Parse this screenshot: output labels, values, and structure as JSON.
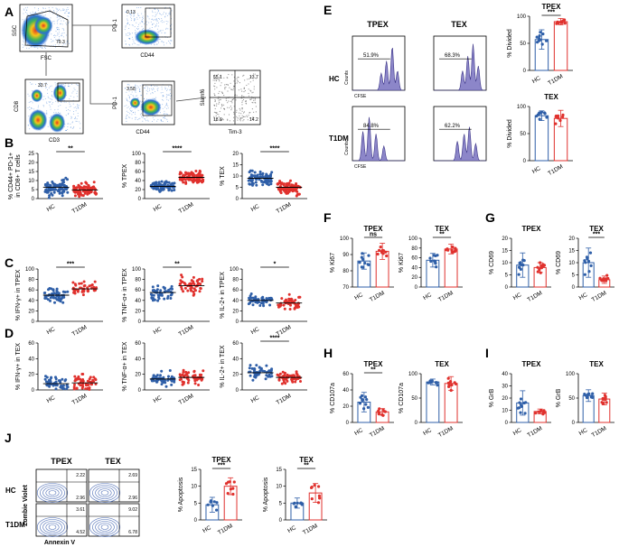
{
  "colors": {
    "hc": "#2f5fa8",
    "t1dm": "#e0312d",
    "density_hot": "#e23b21",
    "contour": "#4a6bb5",
    "hist_fill": "#8c86c9"
  },
  "panel_letters": [
    "A",
    "B",
    "C",
    "D",
    "E",
    "F",
    "G",
    "H",
    "I",
    "J"
  ],
  "panel_A": {
    "axis_labels": [
      "SSC",
      "FSC",
      "CD8",
      "CD3",
      "PD-1",
      "CD44",
      "PD-1",
      "CD44",
      "Slamf6",
      "Tim-3"
    ],
    "gate_values": [
      "79.3",
      "33.7",
      "0.13",
      "3.58",
      "55.1",
      "13.7",
      "18.6",
      "14.2"
    ]
  },
  "panel_E": {
    "col_headers": [
      "TPEX",
      "TEX"
    ],
    "row_headers": [
      "HC",
      "T1DM"
    ],
    "axis_x": "CFSE",
    "axis_y": "Counts",
    "hist_values": [
      "51.9%",
      "68.3%",
      "84.8%",
      "62.2%"
    ]
  },
  "panel_J": {
    "col_headers": [
      "TPEX",
      "TEX"
    ],
    "row_headers": [
      "HC",
      "T1DM"
    ],
    "axis_x": "Annexin V",
    "axis_y": "Zombie Violet",
    "quad_values": [
      "2.22",
      "2.96",
      "2.69",
      "2.96",
      "3.61",
      "4.52",
      "9.02",
      "6.78"
    ]
  },
  "chart_data": [
    {
      "id": "B1",
      "type": "scatter",
      "panel": "B",
      "ylabel_lines": [
        "% CD44+ PD-1+",
        "in CD8+ T cells"
      ],
      "ylim": [
        0,
        25
      ],
      "yticks": [
        "0",
        "5",
        "10",
        "15",
        "20",
        "25"
      ],
      "categories": [
        "HC",
        "T1DM"
      ],
      "means": [
        6.2,
        4.8
      ],
      "spread": [
        4.5,
        3.5
      ],
      "n": [
        80,
        90
      ],
      "sig": "**"
    },
    {
      "id": "B2",
      "type": "scatter",
      "panel": "B",
      "ylabel": "% TPEX",
      "ylim": [
        0,
        100
      ],
      "yticks": [
        "0",
        "20",
        "40",
        "60",
        "80",
        "100"
      ],
      "categories": [
        "HC",
        "T1DM"
      ],
      "means": [
        27,
        47
      ],
      "spread": [
        13,
        13
      ],
      "n": [
        80,
        90
      ],
      "sig": "****"
    },
    {
      "id": "B3",
      "type": "scatter",
      "panel": "B",
      "ylabel": "% TEX",
      "ylim": [
        0,
        20
      ],
      "yticks": [
        "0",
        "5",
        "10",
        "15",
        "20"
      ],
      "categories": [
        "HC",
        "T1DM"
      ],
      "means": [
        9,
        5
      ],
      "spread": [
        3.2,
        2.8
      ],
      "n": [
        80,
        90
      ],
      "sig": "****"
    },
    {
      "id": "C1",
      "type": "scatter",
      "panel": "C",
      "ylabel": "% IFN-γ+ in TPEX",
      "ylim": [
        0,
        100
      ],
      "yticks": [
        "0",
        "20",
        "40",
        "60",
        "80",
        "100"
      ],
      "categories": [
        "HC",
        "T1DM"
      ],
      "means": [
        50,
        62
      ],
      "spread": [
        14,
        14
      ],
      "n": [
        50,
        50
      ],
      "sig": "***"
    },
    {
      "id": "C2",
      "type": "scatter",
      "panel": "C",
      "ylabel": "% TNF-α+ in TPEX",
      "ylim": [
        0,
        100
      ],
      "yticks": [
        "0",
        "20",
        "40",
        "60",
        "80",
        "100"
      ],
      "categories": [
        "HC",
        "T1DM"
      ],
      "means": [
        55,
        68
      ],
      "spread": [
        14,
        16
      ],
      "n": [
        50,
        50
      ],
      "sig": "**"
    },
    {
      "id": "C3",
      "type": "scatter",
      "panel": "C",
      "ylabel": "% IL-2+ in TPEX",
      "ylim": [
        0,
        100
      ],
      "yticks": [
        "0",
        "20",
        "40",
        "60",
        "80",
        "100"
      ],
      "categories": [
        "HC",
        "T1DM"
      ],
      "means": [
        40,
        35
      ],
      "spread": [
        10,
        14
      ],
      "n": [
        50,
        50
      ],
      "sig": "*"
    },
    {
      "id": "D1",
      "type": "scatter",
      "panel": "D",
      "ylabel": "% IFN-γ+ in TEX",
      "ylim": [
        0,
        60
      ],
      "yticks": [
        "0",
        "20",
        "40",
        "60"
      ],
      "categories": [
        "HC",
        "T1DM"
      ],
      "means": [
        8,
        9
      ],
      "spread": [
        8,
        9
      ],
      "n": [
        50,
        50
      ],
      "sig": ""
    },
    {
      "id": "D2",
      "type": "scatter",
      "panel": "D",
      "ylabel": "% TNF-α+ in TEX",
      "ylim": [
        0,
        60
      ],
      "yticks": [
        "0",
        "20",
        "40",
        "60"
      ],
      "categories": [
        "HC",
        "T1DM"
      ],
      "means": [
        14,
        16
      ],
      "spread": [
        8,
        10
      ],
      "n": [
        50,
        50
      ],
      "sig": ""
    },
    {
      "id": "D3",
      "type": "scatter",
      "panel": "D",
      "ylabel": "% IL-2+ in TEX",
      "ylim": [
        0,
        60
      ],
      "yticks": [
        "0",
        "20",
        "40",
        "60"
      ],
      "categories": [
        "HC",
        "T1DM"
      ],
      "means": [
        22,
        16
      ],
      "spread": [
        8,
        8
      ],
      "n": [
        50,
        50
      ],
      "sig": "****"
    },
    {
      "id": "E1",
      "type": "bar",
      "panel": "E",
      "title": "TPEX",
      "ylabel": "% Divided",
      "ylim": [
        0,
        100
      ],
      "yticks": [
        "0",
        "50",
        "100"
      ],
      "categories": [
        "HC",
        "T1DM"
      ],
      "means": [
        57,
        90
      ],
      "err": [
        18,
        6
      ],
      "n": [
        10,
        10
      ],
      "sig": "***"
    },
    {
      "id": "E2",
      "type": "bar",
      "panel": "E",
      "title": "TEX",
      "ylabel": "% Divided",
      "ylim": [
        0,
        100
      ],
      "yticks": [
        "0",
        "50",
        "100"
      ],
      "categories": [
        "HC",
        "T1DM"
      ],
      "means": [
        83,
        78
      ],
      "err": [
        9,
        15
      ],
      "n": [
        10,
        8
      ],
      "sig": ""
    },
    {
      "id": "F1",
      "type": "bar",
      "panel": "F",
      "title": "TPEX",
      "ylabel": "% Ki67",
      "ylim": [
        70,
        100
      ],
      "yticks": [
        "70",
        "80",
        "90",
        "100"
      ],
      "categories": [
        "HC",
        "T1DM"
      ],
      "means": [
        86,
        92
      ],
      "err": [
        5,
        5
      ],
      "n": [
        10,
        10
      ],
      "sig": "ns"
    },
    {
      "id": "F2",
      "type": "bar",
      "panel": "F",
      "title": "TEX",
      "ylabel": "% Ki67",
      "ylim": [
        0,
        100
      ],
      "yticks": [
        "0",
        "20",
        "40",
        "60",
        "80",
        "100"
      ],
      "categories": [
        "HC",
        "T1DM"
      ],
      "means": [
        55,
        78
      ],
      "err": [
        14,
        10
      ],
      "n": [
        10,
        10
      ],
      "sig": "**"
    },
    {
      "id": "G1",
      "type": "bar",
      "panel": "G",
      "title": "TPEX",
      "ylabel": "% CD69",
      "ylim": [
        0,
        20
      ],
      "yticks": [
        "0",
        "5",
        "10",
        "15",
        "20"
      ],
      "categories": [
        "HC",
        "T1DM"
      ],
      "means": [
        9,
        8
      ],
      "err": [
        5,
        2
      ],
      "n": [
        10,
        10
      ],
      "sig": ""
    },
    {
      "id": "G2",
      "type": "bar",
      "panel": "G",
      "title": "TEX",
      "ylabel": "% CD69",
      "ylim": [
        0,
        20
      ],
      "yticks": [
        "0",
        "5",
        "10",
        "15",
        "20"
      ],
      "categories": [
        "HC",
        "T1DM"
      ],
      "means": [
        10,
        3
      ],
      "err": [
        6,
        1.5
      ],
      "n": [
        10,
        10
      ],
      "sig": "***"
    },
    {
      "id": "H1",
      "type": "bar",
      "panel": "H",
      "title": "TPEX",
      "ylabel": "% CD107a",
      "ylim": [
        0,
        60
      ],
      "yticks": [
        "0",
        "20",
        "40",
        "60"
      ],
      "categories": [
        "HC",
        "T1DM"
      ],
      "means": [
        25,
        13
      ],
      "err": [
        12,
        4
      ],
      "n": [
        10,
        10
      ],
      "sig": "**"
    },
    {
      "id": "H2",
      "type": "bar",
      "panel": "H",
      "title": "TEX",
      "ylabel": "% CD107a",
      "ylim": [
        0,
        100
      ],
      "yticks": [
        "0",
        "50",
        "100"
      ],
      "categories": [
        "HC",
        "T1DM"
      ],
      "means": [
        83,
        80
      ],
      "err": [
        6,
        14
      ],
      "n": [
        10,
        10
      ],
      "sig": ""
    },
    {
      "id": "I1",
      "type": "bar",
      "panel": "I",
      "title": "TPEX",
      "ylabel": "% GrB",
      "ylim": [
        0,
        40
      ],
      "yticks": [
        "0",
        "10",
        "20",
        "30",
        "40"
      ],
      "categories": [
        "HC",
        "T1DM"
      ],
      "means": [
        16,
        9
      ],
      "err": [
        10,
        2
      ],
      "n": [
        10,
        10
      ],
      "sig": ""
    },
    {
      "id": "I2",
      "type": "bar",
      "panel": "I",
      "title": "TEX",
      "ylabel": "% GrB",
      "ylim": [
        0,
        100
      ],
      "yticks": [
        "0",
        "50",
        "100"
      ],
      "categories": [
        "HC",
        "T1DM"
      ],
      "means": [
        55,
        48
      ],
      "err": [
        12,
        12
      ],
      "n": [
        10,
        10
      ],
      "sig": ""
    },
    {
      "id": "J1",
      "type": "bar",
      "panel": "J",
      "title": "TPEX",
      "ylabel": "% Apoptosis",
      "ylim": [
        0,
        15
      ],
      "yticks": [
        "0",
        "5",
        "10",
        "15"
      ],
      "categories": [
        "HC",
        "T1DM"
      ],
      "means": [
        4.5,
        10
      ],
      "err": [
        2.2,
        2.5
      ],
      "n": [
        8,
        8
      ],
      "sig": "***"
    },
    {
      "id": "J2",
      "type": "bar",
      "panel": "J",
      "title": "TEX",
      "ylabel": "% Apoptosis",
      "ylim": [
        0,
        15
      ],
      "yticks": [
        "0",
        "5",
        "10",
        "15"
      ],
      "categories": [
        "HC",
        "T1DM"
      ],
      "means": [
        5,
        8
      ],
      "err": [
        1.5,
        2.8
      ],
      "n": [
        8,
        8
      ],
      "sig": "**"
    }
  ]
}
